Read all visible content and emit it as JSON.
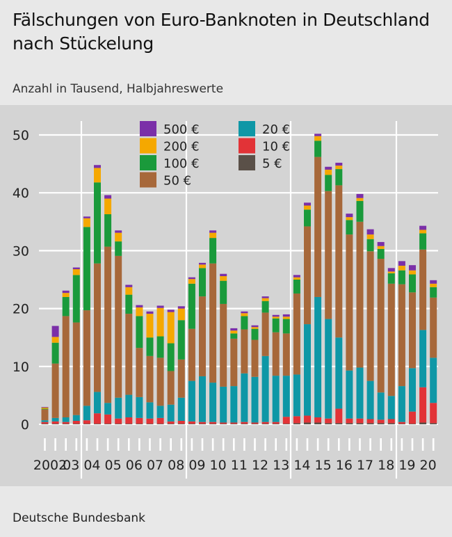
{
  "header": {
    "title": "Fälschungen von Euro-Banknoten in Deutschland nach Stückelung",
    "subtitle": "Anzahl in Tausend, Halbjahreswerte"
  },
  "footer": {
    "source": "Deutsche Bundesbank"
  },
  "colors": {
    "500 €": "#7b2fa8",
    "200 €": "#f5a800",
    "100 €": "#1a9a3b",
    "50 €": "#a7683a",
    "20 €": "#0e97a6",
    "10 €": "#e23337",
    "5 €": "#5a5048"
  },
  "chart_data": {
    "type": "bar",
    "stacked": true,
    "ylim": [
      0,
      52
    ],
    "yticks": [
      0,
      10,
      20,
      30,
      40,
      50
    ],
    "grid": true,
    "legend": "top-center",
    "x": [
      "2002 H1",
      "2002 H2",
      "2003 H1",
      "2003 H2",
      "2004 H1",
      "2004 H2",
      "2005 H1",
      "2005 H2",
      "2006 H1",
      "2006 H2",
      "2007 H1",
      "2007 H2",
      "2008 H1",
      "2008 H2",
      "2009 H1",
      "2009 H2",
      "2010 H1",
      "2010 H2",
      "2011 H1",
      "2011 H2",
      "2012 H1",
      "2012 H2",
      "2013 H1",
      "2013 H2",
      "2014 H1",
      "2014 H2",
      "2015 H1",
      "2015 H2",
      "2016 H1",
      "2016 H2",
      "2017 H1",
      "2017 H2",
      "2018 H1",
      "2018 H2",
      "2019 H1",
      "2019 H2",
      "2020 H1",
      "2020 H2"
    ],
    "year_labels": [
      "2002",
      "03",
      "04",
      "05",
      "06",
      "07",
      "08",
      "09",
      "10",
      "11",
      "12",
      "13",
      "14",
      "15",
      "16",
      "17",
      "18",
      "19",
      "20"
    ],
    "series": [
      {
        "name": "5 €",
        "values": [
          0.1,
          0.1,
          0.1,
          0.1,
          0.1,
          0.1,
          0.1,
          0.1,
          0.1,
          0.1,
          0.1,
          0.1,
          0.1,
          0.1,
          0.1,
          0.1,
          0.1,
          0.1,
          0.1,
          0.1,
          0.1,
          0.1,
          0.1,
          0.1,
          0.2,
          0.3,
          0.3,
          0.2,
          0.2,
          0.2,
          0.2,
          0.2,
          0.2,
          0.2,
          0.1,
          0.1,
          0.3,
          0.2
        ]
      },
      {
        "name": "10 €",
        "values": [
          0.3,
          0.4,
          0.3,
          0.5,
          0.6,
          1.8,
          1.6,
          0.9,
          1.1,
          1.0,
          0.9,
          1.0,
          0.4,
          0.5,
          0.4,
          0.3,
          0.3,
          0.2,
          0.2,
          0.3,
          0.2,
          0.3,
          0.3,
          1.2,
          1.2,
          1.2,
          0.9,
          0.8,
          2.5,
          0.8,
          0.8,
          0.7,
          0.6,
          0.7,
          0.3,
          2.1,
          6.1,
          3.5
        ]
      },
      {
        "name": "20 €",
        "values": [
          0.3,
          0.6,
          0.8,
          1.0,
          2.5,
          3.7,
          2.0,
          3.6,
          3.9,
          3.6,
          2.8,
          2.1,
          2.9,
          4.0,
          7.0,
          7.9,
          6.8,
          6.2,
          6.3,
          8.4,
          7.9,
          11.4,
          8.0,
          7.1,
          7.2,
          15.8,
          20.8,
          17.2,
          12.3,
          8.3,
          8.8,
          6.6,
          4.7,
          4.0,
          6.2,
          7.5,
          9.9,
          7.8
        ]
      },
      {
        "name": "50 €",
        "values": [
          1.9,
          9.4,
          17.5,
          16.0,
          16.5,
          22.2,
          27.0,
          24.5,
          14.0,
          8.5,
          8.0,
          8.3,
          5.8,
          6.6,
          9.0,
          13.8,
          20.6,
          14.3,
          8.2,
          7.6,
          6.4,
          7.5,
          7.5,
          7.3,
          14.0,
          16.9,
          24.2,
          22.1,
          26.3,
          23.5,
          25.2,
          22.4,
          23.1,
          19.4,
          17.6,
          13.1,
          13.9,
          10.4
        ]
      },
      {
        "name": "100 €",
        "values": [
          0.1,
          3.6,
          3.3,
          8.2,
          14.4,
          14.0,
          5.6,
          2.5,
          3.3,
          5.5,
          3.2,
          3.7,
          4.8,
          6.8,
          7.8,
          4.9,
          4.4,
          4.0,
          0.9,
          2.3,
          1.9,
          2.0,
          2.4,
          2.5,
          2.4,
          2.9,
          2.8,
          2.8,
          2.8,
          2.5,
          3.6,
          2.1,
          1.7,
          1.8,
          2.4,
          3.1,
          2.8,
          1.8
        ]
      },
      {
        "name": "200 €",
        "values": [
          0.2,
          1.0,
          0.7,
          1.0,
          1.5,
          2.5,
          2.7,
          1.5,
          1.3,
          1.5,
          4.1,
          4.9,
          5.4,
          2.0,
          0.8,
          0.6,
          0.9,
          0.8,
          0.5,
          0.5,
          0.3,
          0.5,
          0.3,
          0.4,
          0.4,
          0.7,
          0.8,
          0.9,
          0.6,
          0.5,
          0.5,
          0.8,
          0.5,
          0.3,
          0.8,
          0.7,
          0.6,
          0.6
        ]
      },
      {
        "name": "500 €",
        "values": [
          0.1,
          1.9,
          0.4,
          0.3,
          0.3,
          0.5,
          0.6,
          0.4,
          0.4,
          0.4,
          0.4,
          0.4,
          0.4,
          0.4,
          0.3,
          0.3,
          0.4,
          0.4,
          0.4,
          0.3,
          0.3,
          0.3,
          0.3,
          0.4,
          0.4,
          0.5,
          0.4,
          0.5,
          0.5,
          0.6,
          0.7,
          0.9,
          0.7,
          0.6,
          0.8,
          0.9,
          0.7,
          0.6
        ]
      }
    ],
    "legend_columns": [
      [
        "500 €",
        "200 €",
        "100 €",
        "50 €"
      ],
      [
        "20 €",
        "10 €",
        "5 €"
      ]
    ]
  }
}
